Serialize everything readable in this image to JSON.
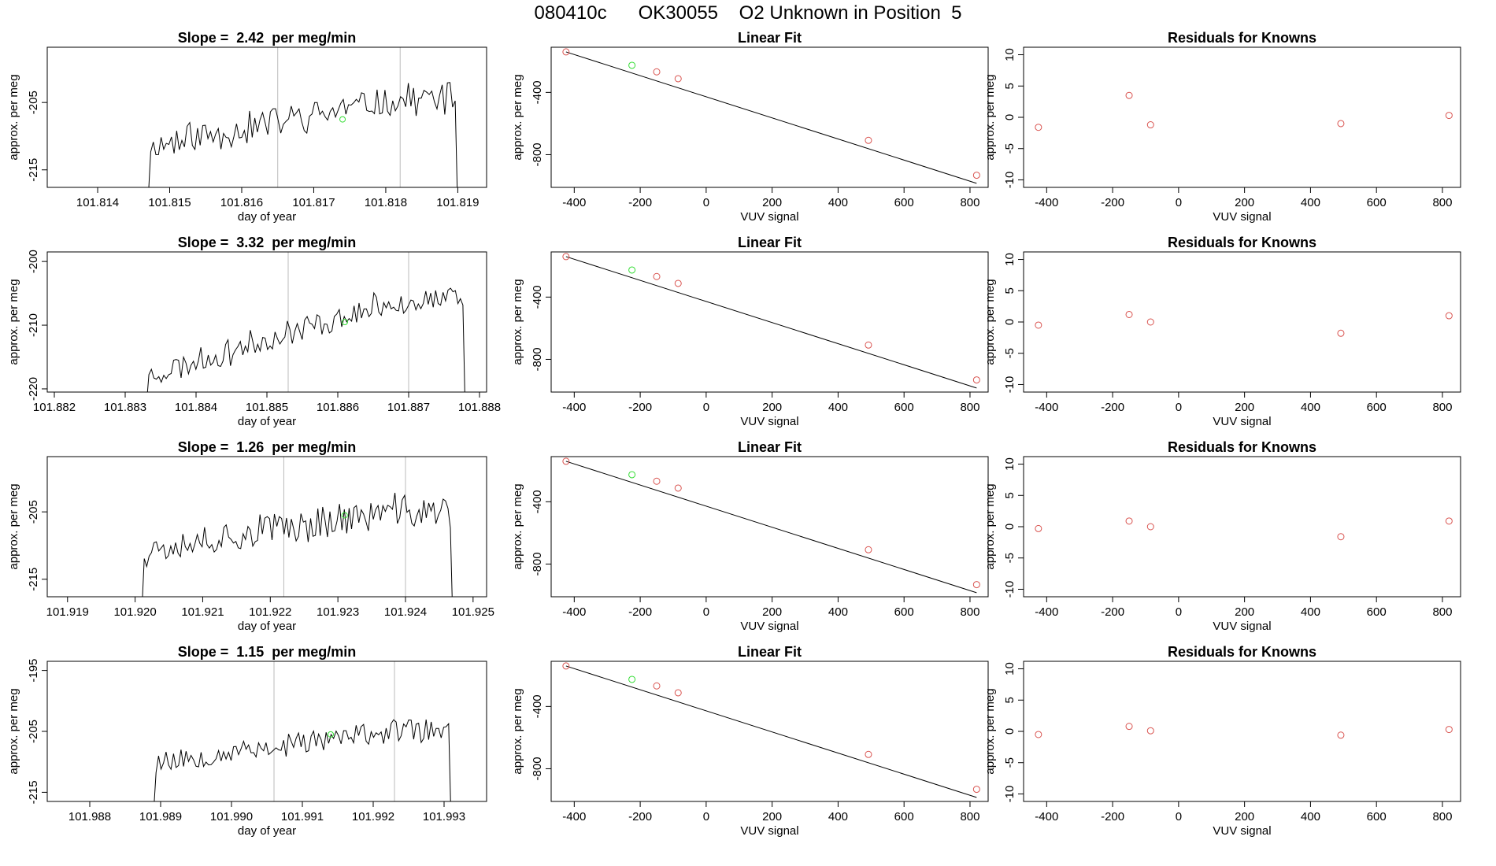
{
  "figure": {
    "title": "080410c      OK30055    O2 Unknown in Position  5"
  },
  "colors": {
    "trace": "#000000",
    "marker_known": "#d9534f",
    "marker_unknown": "#33dd33",
    "vline": "#bbbbbb",
    "fit_line": "#000000"
  },
  "chart_data": [
    {
      "type": "line",
      "title": "Slope =  2.42  per meg/min",
      "xlabel": "day of year",
      "ylabel": "approx. per meg",
      "xlim": [
        101.8133,
        101.8194
      ],
      "ylim": [
        -217.6,
        -196.8
      ],
      "xticks": [
        101.814,
        101.815,
        101.816,
        101.817,
        101.818,
        101.819
      ],
      "xtick_labels": [
        "101.814",
        "101.815",
        "101.816",
        "101.817",
        "101.818",
        "101.819"
      ],
      "yticks": [
        -215,
        -205
      ],
      "ytick_labels": [
        "-215",
        "-205"
      ],
      "vlines": [
        101.8165,
        101.8182
      ],
      "trace": {
        "x0": 101.8147,
        "x1": 101.819,
        "n": 120,
        "base": -211.5,
        "rise": 7.0,
        "noise": 3.2,
        "seed": 11
      },
      "highlight": {
        "x": 101.8174,
        "y": -207.5
      }
    },
    {
      "type": "scatter",
      "title": "Linear Fit",
      "xlabel": "VUV signal",
      "ylabel": "approx. per meg",
      "xlim": [
        -470,
        855
      ],
      "ylim": [
        -1010,
        -110
      ],
      "xticks": [
        -400,
        -200,
        0,
        200,
        400,
        600,
        800
      ],
      "xtick_labels": [
        "-400",
        "-200",
        "0",
        "200",
        "400",
        "600",
        "800"
      ],
      "yticks": [
        -400,
        -800
      ],
      "ytick_labels": [
        "-400",
        "-800"
      ],
      "fit_line": {
        "x": [
          -425,
          820
        ],
        "y": [
          -140,
          -984
        ]
      },
      "points_known": [
        {
          "x": -425,
          "y": -140
        },
        {
          "x": -150,
          "y": -268
        },
        {
          "x": -85,
          "y": -312
        },
        {
          "x": 492,
          "y": -708
        },
        {
          "x": 820,
          "y": -932
        }
      ],
      "points_unknown": [
        {
          "x": -225,
          "y": -226
        }
      ]
    },
    {
      "type": "scatter",
      "title": "Residuals for Knowns",
      "xlabel": "VUV signal",
      "ylabel": "approx. per meg",
      "xlim": [
        -470,
        855
      ],
      "ylim": [
        -11.2,
        11.2
      ],
      "xticks": [
        -400,
        -200,
        0,
        200,
        400,
        600,
        800
      ],
      "xtick_labels": [
        "-400",
        "-200",
        "0",
        "200",
        "400",
        "600",
        "800"
      ],
      "yticks": [
        -10,
        -5,
        0,
        5,
        10
      ],
      "ytick_labels": [
        "-10",
        "-5",
        "0",
        "5",
        "10"
      ],
      "points_known": [
        {
          "x": -425,
          "y": -1.6
        },
        {
          "x": -150,
          "y": 3.5
        },
        {
          "x": -85,
          "y": -1.2
        },
        {
          "x": 492,
          "y": -1.0
        },
        {
          "x": 820,
          "y": 0.3
        }
      ]
    },
    {
      "type": "line",
      "title": "Slope =  3.32  per meg/min",
      "xlabel": "day of year",
      "ylabel": "approx. per meg",
      "xlim": [
        101.8819,
        101.8881
      ],
      "ylim": [
        -220.5,
        -198.5
      ],
      "xticks": [
        101.882,
        101.883,
        101.884,
        101.885,
        101.886,
        101.887,
        101.888
      ],
      "xtick_labels": [
        "101.882",
        "101.883",
        "101.884",
        "101.885",
        "101.886",
        "101.887",
        "101.888"
      ],
      "yticks": [
        -220,
        -210,
        -200
      ],
      "ytick_labels": [
        "-220",
        "-210",
        "-200"
      ],
      "vlines": [
        101.8853,
        101.887
      ],
      "trace": {
        "x0": 101.8833,
        "x1": 101.8878,
        "n": 130,
        "base": -218.0,
        "rise": 12.0,
        "noise": 2.8,
        "seed": 23
      },
      "highlight": {
        "x": 101.8861,
        "y": -209.5
      }
    },
    {
      "type": "scatter",
      "title": "Linear Fit",
      "xlabel": "VUV signal",
      "ylabel": "approx. per meg",
      "xlim": [
        -470,
        855
      ],
      "ylim": [
        -1010,
        -110
      ],
      "xticks": [
        -400,
        -200,
        0,
        200,
        400,
        600,
        800
      ],
      "xtick_labels": [
        "-400",
        "-200",
        "0",
        "200",
        "400",
        "600",
        "800"
      ],
      "yticks": [
        -400,
        -800
      ],
      "ytick_labels": [
        "-400",
        "-800"
      ],
      "fit_line": {
        "x": [
          -425,
          820
        ],
        "y": [
          -140,
          -984
        ]
      },
      "points_known": [
        {
          "x": -425,
          "y": -140
        },
        {
          "x": -150,
          "y": -268
        },
        {
          "x": -85,
          "y": -312
        },
        {
          "x": 492,
          "y": -708
        },
        {
          "x": 820,
          "y": -932
        }
      ],
      "points_unknown": [
        {
          "x": -225,
          "y": -226
        }
      ]
    },
    {
      "type": "scatter",
      "title": "Residuals for Knowns",
      "xlabel": "VUV signal",
      "ylabel": "approx. per meg",
      "xlim": [
        -470,
        855
      ],
      "ylim": [
        -11.2,
        11.2
      ],
      "xticks": [
        -400,
        -200,
        0,
        200,
        400,
        600,
        800
      ],
      "xtick_labels": [
        "-400",
        "-200",
        "0",
        "200",
        "400",
        "600",
        "800"
      ],
      "yticks": [
        -10,
        -5,
        0,
        5,
        10
      ],
      "ytick_labels": [
        "-10",
        "-5",
        "0",
        "5",
        "10"
      ],
      "points_known": [
        {
          "x": -425,
          "y": -0.5
        },
        {
          "x": -150,
          "y": 1.2
        },
        {
          "x": -85,
          "y": 0.0
        },
        {
          "x": 492,
          "y": -1.8
        },
        {
          "x": 820,
          "y": 1.0
        }
      ]
    },
    {
      "type": "line",
      "title": "Slope =  1.26  per meg/min",
      "xlabel": "day of year",
      "ylabel": "approx. per meg",
      "xlim": [
        101.9187,
        101.9252
      ],
      "ylim": [
        -217.6,
        -196.8
      ],
      "xticks": [
        101.919,
        101.92,
        101.921,
        101.922,
        101.923,
        101.924,
        101.925
      ],
      "xtick_labels": [
        "101.919",
        "101.920",
        "101.921",
        "101.922",
        "101.923",
        "101.924",
        "101.925"
      ],
      "yticks": [
        -215,
        -205
      ],
      "ytick_labels": [
        "-215",
        "-205"
      ],
      "vlines": [
        101.9222,
        101.924
      ],
      "trace": {
        "x0": 101.9201,
        "x1": 101.9247,
        "n": 130,
        "base": -210.5,
        "rise": 5.5,
        "noise": 3.4,
        "seed": 37
      },
      "highlight": {
        "x": 101.9231,
        "y": -205.5
      }
    },
    {
      "type": "scatter",
      "title": "Linear Fit",
      "xlabel": "VUV signal",
      "ylabel": "approx. per meg",
      "xlim": [
        -470,
        855
      ],
      "ylim": [
        -1010,
        -110
      ],
      "xticks": [
        -400,
        -200,
        0,
        200,
        400,
        600,
        800
      ],
      "xtick_labels": [
        "-400",
        "-200",
        "0",
        "200",
        "400",
        "600",
        "800"
      ],
      "yticks": [
        -400,
        -800
      ],
      "ytick_labels": [
        "-400",
        "-800"
      ],
      "fit_line": {
        "x": [
          -425,
          820
        ],
        "y": [
          -140,
          -984
        ]
      },
      "points_known": [
        {
          "x": -425,
          "y": -140
        },
        {
          "x": -150,
          "y": -268
        },
        {
          "x": -85,
          "y": -312
        },
        {
          "x": 492,
          "y": -708
        },
        {
          "x": 820,
          "y": -932
        }
      ],
      "points_unknown": [
        {
          "x": -225,
          "y": -226
        }
      ]
    },
    {
      "type": "scatter",
      "title": "Residuals for Knowns",
      "xlabel": "VUV signal",
      "ylabel": "approx. per meg",
      "xlim": [
        -470,
        855
      ],
      "ylim": [
        -11.2,
        11.2
      ],
      "xticks": [
        -400,
        -200,
        0,
        200,
        400,
        600,
        800
      ],
      "xtick_labels": [
        "-400",
        "-200",
        "0",
        "200",
        "400",
        "600",
        "800"
      ],
      "yticks": [
        -10,
        -5,
        0,
        5,
        10
      ],
      "ytick_labels": [
        "-10",
        "-5",
        "0",
        "5",
        "10"
      ],
      "points_known": [
        {
          "x": -425,
          "y": -0.3
        },
        {
          "x": -150,
          "y": 0.9
        },
        {
          "x": -85,
          "y": 0.0
        },
        {
          "x": 492,
          "y": -1.6
        },
        {
          "x": 820,
          "y": 0.9
        }
      ]
    },
    {
      "type": "line",
      "title": "Slope =  1.15  per meg/min",
      "xlabel": "day of year",
      "ylabel": "approx. per meg",
      "xlim": [
        101.9874,
        101.9936
      ],
      "ylim": [
        -216.5,
        -193.5
      ],
      "xticks": [
        101.988,
        101.989,
        101.99,
        101.991,
        101.992,
        101.993
      ],
      "xtick_labels": [
        "101.988",
        "101.989",
        "101.990",
        "101.991",
        "101.992",
        "101.993"
      ],
      "yticks": [
        -215,
        -205,
        -195
      ],
      "ytick_labels": [
        "-215",
        "-205",
        "-195"
      ],
      "vlines": [
        101.9906,
        101.9923
      ],
      "trace": {
        "x0": 101.9889,
        "x1": 101.9931,
        "n": 120,
        "base": -210.0,
        "rise": 5.0,
        "noise": 2.6,
        "seed": 53
      },
      "highlight": {
        "x": 101.9914,
        "y": -205.5
      }
    },
    {
      "type": "scatter",
      "title": "Linear Fit",
      "xlabel": "VUV signal",
      "ylabel": "approx. per meg",
      "xlim": [
        -470,
        855
      ],
      "ylim": [
        -1010,
        -110
      ],
      "xticks": [
        -400,
        -200,
        0,
        200,
        400,
        600,
        800
      ],
      "xtick_labels": [
        "-400",
        "-200",
        "0",
        "200",
        "400",
        "600",
        "800"
      ],
      "yticks": [
        -400,
        -800
      ],
      "ytick_labels": [
        "-400",
        "-800"
      ],
      "fit_line": {
        "x": [
          -425,
          820
        ],
        "y": [
          -140,
          -984
        ]
      },
      "points_known": [
        {
          "x": -425,
          "y": -140
        },
        {
          "x": -150,
          "y": -268
        },
        {
          "x": -85,
          "y": -312
        },
        {
          "x": 492,
          "y": -708
        },
        {
          "x": 820,
          "y": -932
        }
      ],
      "points_unknown": [
        {
          "x": -225,
          "y": -226
        }
      ]
    },
    {
      "type": "scatter",
      "title": "Residuals for Knowns",
      "xlabel": "VUV signal",
      "ylabel": "approx. per meg",
      "xlim": [
        -470,
        855
      ],
      "ylim": [
        -11.2,
        11.2
      ],
      "xticks": [
        -400,
        -200,
        0,
        200,
        400,
        600,
        800
      ],
      "xtick_labels": [
        "-400",
        "-200",
        "0",
        "200",
        "400",
        "600",
        "800"
      ],
      "yticks": [
        -10,
        -5,
        0,
        5,
        10
      ],
      "ytick_labels": [
        "-10",
        "-5",
        "0",
        "5",
        "10"
      ],
      "points_known": [
        {
          "x": -425,
          "y": -0.5
        },
        {
          "x": -150,
          "y": 0.8
        },
        {
          "x": -85,
          "y": 0.1
        },
        {
          "x": 492,
          "y": -0.6
        },
        {
          "x": 820,
          "y": 0.3
        }
      ]
    }
  ]
}
